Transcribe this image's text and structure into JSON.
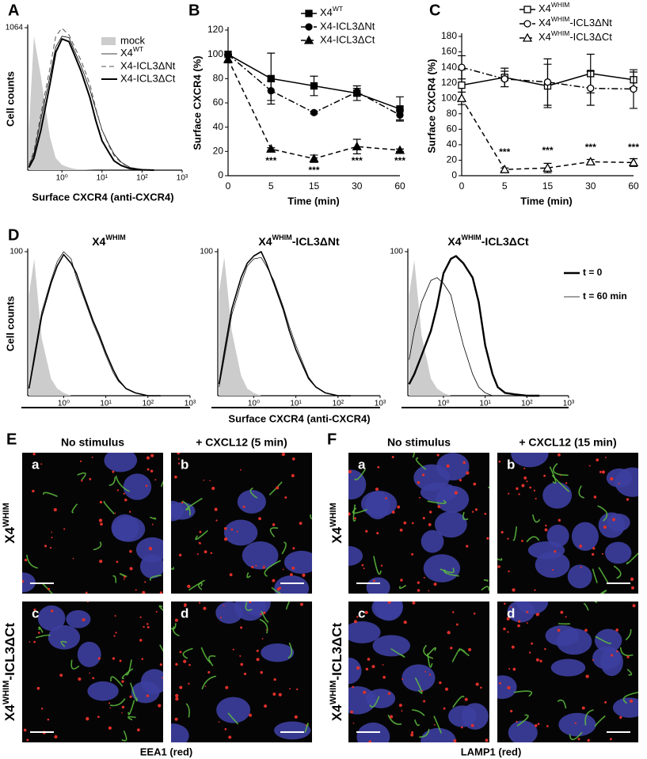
{
  "chart_data": [
    {
      "type": "line",
      "panel": "A",
      "xlabel": "Surface CXCR4 (anti-CXCR4)",
      "ylabel": "Cell counts",
      "xscale": "log",
      "x": [
        0.15,
        0.2,
        0.3,
        0.5,
        0.7,
        1,
        1.5,
        2,
        3,
        5,
        7,
        10,
        15,
        20,
        30,
        50,
        100,
        200
      ],
      "xlim": [
        0.14,
        1000
      ],
      "xticks": [
        {
          "value": 1,
          "label": "10⁰"
        },
        {
          "value": 10,
          "label": "10¹"
        },
        {
          "value": 100,
          "label": "10²"
        },
        {
          "value": 1000,
          "label": "10³"
        }
      ],
      "ylim": [
        0,
        1064
      ],
      "yticks": [
        1064
      ],
      "series": [
        {
          "name": "mock",
          "color": "#cccccc",
          "fill": true,
          "values": [
            300,
            1000,
            700,
            250,
            90,
            40,
            20,
            10,
            5,
            2,
            0,
            0,
            0,
            0,
            0,
            0,
            0,
            0
          ]
        },
        {
          "name": "X4WT",
          "color": "#000000",
          "width": 0.8,
          "style": "solid",
          "values": [
            30,
            120,
            380,
            700,
            920,
            1000,
            990,
            900,
            780,
            600,
            450,
            300,
            190,
            120,
            60,
            20,
            5,
            0
          ]
        },
        {
          "name": "X4-ICL3ΔNt",
          "color": "#555555",
          "width": 1,
          "style": "dashed",
          "values": [
            40,
            140,
            420,
            760,
            1000,
            1060,
            1010,
            930,
            820,
            640,
            460,
            300,
            180,
            110,
            55,
            20,
            4,
            0
          ]
        },
        {
          "name": "X4-ICL3ΔCt",
          "color": "#000000",
          "width": 2,
          "style": "solid",
          "values": [
            20,
            90,
            300,
            640,
            880,
            980,
            960,
            870,
            740,
            540,
            370,
            220,
            130,
            70,
            35,
            12,
            3,
            0
          ]
        }
      ]
    },
    {
      "type": "line",
      "panel": "B",
      "xlabel": "Time (min)",
      "ylabel": "Surface CXCR4 (%)",
      "categories": [
        "0",
        "5",
        "15",
        "30",
        "60"
      ],
      "ylim": [
        0,
        120
      ],
      "yticks": [
        0,
        20,
        40,
        60,
        80,
        100,
        120
      ],
      "series": [
        {
          "name": "X4WT",
          "color": "#000000",
          "width": 1.5,
          "style": "solid",
          "marker": "square",
          "marker_fill": "filled",
          "values": [
            100,
            80,
            74,
            68,
            55
          ],
          "errors": [
            0,
            21,
            8,
            6,
            10
          ]
        },
        {
          "name": "X4-ICL3ΔNt",
          "color": "#000000",
          "width": 1.5,
          "style": "dashdot",
          "marker": "circle",
          "marker_fill": "filled",
          "values": [
            100,
            70,
            52,
            69,
            50
          ],
          "errors": [
            0,
            8,
            1,
            3,
            4
          ]
        },
        {
          "name": "X4-ICL3ΔCt",
          "color": "#000000",
          "width": 1.5,
          "style": "dashed",
          "marker": "triangle",
          "marker_fill": "filled",
          "values": [
            96,
            22,
            14,
            24,
            21
          ],
          "errors": [
            3,
            1,
            3,
            6,
            1
          ]
        }
      ],
      "annotations": [
        {
          "text": "***",
          "x": "5",
          "y": 12
        },
        {
          "text": "***",
          "x": "15",
          "y": 4
        },
        {
          "text": "***",
          "x": "30",
          "y": 12
        },
        {
          "text": "***",
          "x": "60",
          "y": 12
        }
      ]
    },
    {
      "type": "line",
      "panel": "C",
      "xlabel": "Time (min)",
      "ylabel": "Surface CXCR4 (%)",
      "categories": [
        "0",
        "5",
        "15",
        "30",
        "60"
      ],
      "ylim": [
        0,
        180
      ],
      "yticks": [
        0,
        20,
        40,
        60,
        80,
        100,
        120,
        140,
        160,
        180
      ],
      "series": [
        {
          "name": "X4WHIM",
          "color": "#000000",
          "width": 1.5,
          "style": "solid",
          "marker": "square",
          "marker_fill": "open",
          "values": [
            117,
            127,
            116,
            132,
            124
          ],
          "errors": [
            20,
            12,
            28,
            25,
            10
          ]
        },
        {
          "name": "X4WHIM-ICL3ΔNt",
          "color": "#000000",
          "width": 1.5,
          "style": "dashdot",
          "marker": "circle",
          "marker_fill": "open",
          "values": [
            140,
            125,
            121,
            113,
            112
          ],
          "errors": [
            15,
            10,
            30,
            22,
            25
          ]
        },
        {
          "name": "X4WHIM-ICL3ΔCt",
          "color": "#000000",
          "width": 1.5,
          "style": "dashed",
          "marker": "triangle",
          "marker_fill": "open",
          "values": [
            100,
            8,
            10,
            18,
            17
          ],
          "errors": [
            8,
            2,
            6,
            3,
            5
          ]
        }
      ],
      "annotations": [
        {
          "text": "***",
          "x": "5",
          "y": 30
        },
        {
          "text": "***",
          "x": "15",
          "y": 32
        },
        {
          "text": "***",
          "x": "30",
          "y": 36
        },
        {
          "text": "***",
          "x": "60",
          "y": 36
        }
      ]
    },
    {
      "type": "line",
      "panel": "D",
      "title": "X4WHIM",
      "ylabel": "Cell counts",
      "xscale": "log",
      "x": [
        0.15,
        0.2,
        0.3,
        0.5,
        0.7,
        1,
        1.5,
        2,
        3,
        5,
        7,
        10,
        15,
        20,
        30,
        50,
        100,
        200
      ],
      "xlim": [
        0.14,
        1000
      ],
      "xticks": [
        {
          "value": 1,
          "label": "10⁰"
        },
        {
          "value": 10,
          "label": "10¹"
        },
        {
          "value": 100,
          "label": "10²"
        },
        {
          "value": 1000,
          "label": "10³"
        }
      ],
      "ylim": [
        0,
        100
      ],
      "yticks": [
        100
      ],
      "series": [
        {
          "color": "#cccccc",
          "fill": true,
          "values": [
            70,
            95,
            40,
            12,
            5,
            2,
            0,
            0,
            0,
            0,
            0,
            0,
            0,
            0,
            0,
            0,
            0,
            0
          ]
        },
        {
          "color": "#000000",
          "width": 1.6,
          "style": "solid",
          "values": [
            5,
            25,
            55,
            78,
            90,
            98,
            92,
            85,
            70,
            52,
            42,
            30,
            18,
            11,
            5,
            2,
            0,
            0
          ]
        },
        {
          "color": "#000000",
          "width": 0.7,
          "style": "solid",
          "values": [
            6,
            28,
            58,
            80,
            93,
            100,
            95,
            82,
            68,
            50,
            40,
            28,
            16,
            10,
            5,
            2,
            0,
            0
          ]
        }
      ]
    },
    {
      "type": "line",
      "title": "X4WHIM-ICL3ΔNt",
      "xlabel": "Surface CXCR4 (anti-CXCR4)",
      "xscale": "log",
      "x": [
        0.15,
        0.2,
        0.3,
        0.5,
        0.7,
        1,
        1.5,
        2,
        3,
        5,
        7,
        10,
        15,
        20,
        30,
        50,
        100,
        200
      ],
      "xlim": [
        0.14,
        1000
      ],
      "xticks": [
        {
          "value": 1,
          "label": "10⁰"
        },
        {
          "value": 10,
          "label": "10¹"
        },
        {
          "value": 100,
          "label": "10²"
        },
        {
          "value": 1000,
          "label": "10³"
        }
      ],
      "ylim": [
        0,
        100
      ],
      "yticks": [
        100
      ],
      "series": [
        {
          "color": "#cccccc",
          "fill": true,
          "values": [
            72,
            96,
            45,
            14,
            5,
            2,
            0,
            0,
            0,
            0,
            0,
            0,
            0,
            0,
            0,
            0,
            0,
            0
          ]
        },
        {
          "color": "#000000",
          "width": 1.6,
          "style": "solid",
          "values": [
            8,
            30,
            60,
            82,
            92,
            97,
            100,
            92,
            78,
            60,
            45,
            32,
            20,
            12,
            6,
            2,
            0,
            0
          ]
        },
        {
          "color": "#000000",
          "width": 0.7,
          "style": "solid",
          "values": [
            6,
            26,
            56,
            78,
            90,
            95,
            96,
            90,
            80,
            62,
            48,
            35,
            22,
            13,
            6,
            2,
            0,
            0
          ]
        }
      ]
    },
    {
      "type": "line",
      "title": "X4WHIM-ICL3ΔCt",
      "xscale": "log",
      "x": [
        0.15,
        0.2,
        0.3,
        0.5,
        0.7,
        1,
        1.5,
        2,
        3,
        5,
        7,
        10,
        15,
        20,
        30,
        50,
        100,
        200
      ],
      "xlim": [
        0.14,
        1000
      ],
      "xticks": [
        {
          "value": 1,
          "label": "10⁰"
        },
        {
          "value": 10,
          "label": "10¹"
        },
        {
          "value": 100,
          "label": "10²"
        },
        {
          "value": 1000,
          "label": "10³"
        }
      ],
      "ylim": [
        0,
        100
      ],
      "yticks": [
        100
      ],
      "series": [
        {
          "color": "#cccccc",
          "fill": true,
          "values": [
            70,
            94,
            42,
            12,
            5,
            2,
            0,
            0,
            0,
            0,
            0,
            0,
            0,
            0,
            0,
            0,
            0,
            0
          ]
        },
        {
          "name": "t = 0",
          "color": "#000000",
          "width": 2.4,
          "style": "solid",
          "values": [
            8,
            15,
            28,
            45,
            62,
            85,
            95,
            97,
            92,
            82,
            65,
            35,
            15,
            6,
            2,
            1,
            0,
            0
          ]
        },
        {
          "name": "t = 60 min",
          "color": "#000000",
          "width": 0.8,
          "style": "solid",
          "values": [
            25,
            45,
            65,
            80,
            82,
            78,
            70,
            55,
            35,
            15,
            6,
            2,
            0,
            0,
            0,
            0,
            0,
            0
          ]
        }
      ]
    }
  ],
  "panels": [
    {
      "label": "E",
      "columns": [
        "No stimulus",
        "+ CXCL12 (5 min)"
      ],
      "rows": [
        "X4WHIM",
        "X4WHIM-ICL3ΔCt"
      ],
      "image_labels": [
        "a",
        "b",
        "c",
        "d"
      ],
      "caption": "EEA1 (red)"
    },
    {
      "label": "F",
      "columns": [
        "No stimulus",
        "+ CXCL12 (15 min)"
      ],
      "rows": [
        "X4WHIM",
        "X4WHIM-ICL3ΔCt"
      ],
      "image_labels": [
        "a",
        "b",
        "c",
        "d"
      ],
      "caption": "LAMP1 (red)"
    }
  ]
}
